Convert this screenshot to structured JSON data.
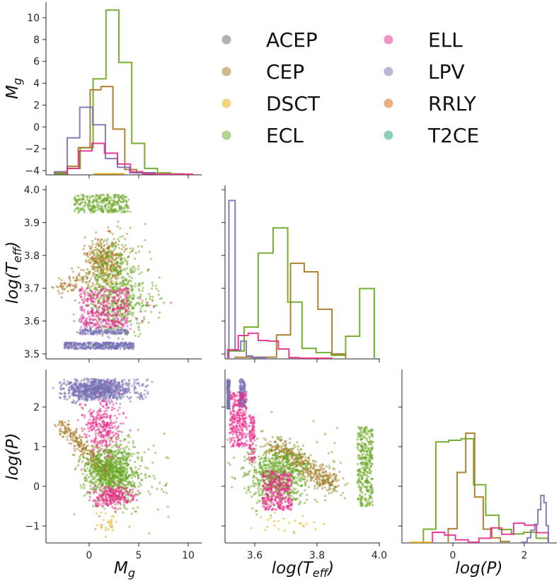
{
  "chart_data": {
    "type": "pairplot",
    "grid": false,
    "legend_placement": "upper-right",
    "variables": [
      {
        "key": "Mg",
        "label": {
          "main": "M",
          "sub": "g",
          "tail": ""
        },
        "range": [
          -4.36,
          11.36
        ],
        "ticks": [
          {
            "v": 0,
            "t": "0"
          },
          {
            "v": 5,
            "t": "5"
          },
          {
            "v": 10,
            "t": "10"
          }
        ]
      },
      {
        "key": "logT",
        "label": {
          "main": "log(T",
          "sub": "eff",
          "tail": ")"
        },
        "range": [
          3.505,
          4.0
        ],
        "ticks": [
          {
            "v": 3.5,
            "t": "3.5"
          },
          {
            "v": 3.6,
            "t": "3.6"
          },
          {
            "v": 3.7,
            "t": "3.7"
          },
          {
            "v": 3.8,
            "t": "3.8"
          },
          {
            "v": 3.9,
            "t": "3.9"
          },
          {
            "v": 4.0,
            "t": "4.0"
          }
        ]
      },
      {
        "key": "logP",
        "label": {
          "main": "log(P)",
          "sub": "",
          "tail": ""
        },
        "range": [
          -1.43,
          2.98
        ],
        "ticks": [
          {
            "v": -1,
            "t": "−1"
          },
          {
            "v": 0,
            "t": "0"
          },
          {
            "v": 1,
            "t": "1"
          },
          {
            "v": 2,
            "t": "2"
          }
        ]
      }
    ],
    "x_ticks_bottom": {
      "Mg": [
        {
          "v": 0,
          "t": "0"
        },
        {
          "v": 5,
          "t": "5"
        },
        {
          "v": 10,
          "t": "10"
        }
      ],
      "logT": [
        {
          "v": 3.6,
          "t": "3.6"
        },
        {
          "v": 3.8,
          "t": "3.8"
        },
        {
          "v": 4.0,
          "t": "4.0"
        }
      ],
      "logP": [
        {
          "v": 0,
          "t": "0"
        },
        {
          "v": 2,
          "t": "2"
        }
      ]
    },
    "top_left_y_ticks": [
      {
        "v": -4,
        "t": "−4"
      },
      {
        "v": -2,
        "t": "−2"
      },
      {
        "v": 0,
        "t": "0"
      },
      {
        "v": 2,
        "t": "2"
      },
      {
        "v": 4,
        "t": "4"
      },
      {
        "v": 6,
        "t": "6"
      },
      {
        "v": 8,
        "t": "8"
      },
      {
        "v": 10,
        "t": "10"
      }
    ],
    "top_left_y_range": [
      -4.35,
      11.5
    ],
    "classes": [
      {
        "name": "ACEP",
        "color": "#666666"
      },
      {
        "name": "CEP",
        "color": "#a6761d"
      },
      {
        "name": "DSCT",
        "color": "#e6ab02"
      },
      {
        "name": "ECL",
        "color": "#66a61e"
      },
      {
        "name": "ELL",
        "color": "#e7298a"
      },
      {
        "name": "LPV",
        "color": "#7570b3"
      },
      {
        "name": "RRLY",
        "color": "#d95f02"
      },
      {
        "name": "T2CE",
        "color": "#1b9e77"
      }
    ],
    "histograms": {
      "Mg": [
        {
          "class": "ECL",
          "edges": [
            -3.5,
            -2.2,
            -0.9,
            0.4,
            1.7,
            3.0,
            4.3,
            5.6,
            6.9,
            8.2,
            9.5
          ],
          "heights": [
            -4.3,
            -3.8,
            -1.9,
            4.4,
            10.7,
            5.9,
            -1.5,
            -3.8,
            -4.2,
            -4.3
          ]
        },
        {
          "class": "CEP",
          "edges": [
            -3.5,
            -2.2,
            -1.1,
            0.1,
            1.2,
            2.4,
            3.6,
            4.8,
            6.5
          ],
          "heights": [
            -4.2,
            -3.6,
            -1.9,
            3.4,
            3.7,
            -0.2,
            -3.9,
            -4.2
          ]
        },
        {
          "class": "LPV",
          "edges": [
            -3.5,
            -2.21,
            -0.95,
            0.36,
            1.64,
            2.86,
            4.1,
            6.71
          ],
          "heights": [
            -4.1,
            -1.0,
            1.8,
            0.2,
            -2.9,
            -3.7,
            -4.2
          ]
        },
        {
          "class": "ELL",
          "edges": [
            -2.21,
            -1.02,
            0.29,
            1.55,
            2.86,
            4.17,
            5.4,
            6.71,
            10.5
          ],
          "heights": [
            -3.8,
            -2.2,
            -1.5,
            -2.4,
            -3.4,
            -4.1,
            -4.3,
            -4.35
          ]
        },
        {
          "class": "DSCT",
          "edges": [
            0.5,
            3.5
          ],
          "heights": [
            -4.3
          ]
        }
      ],
      "logT": [
        {
          "class": "ECL",
          "edges": [
            3.517,
            3.566,
            3.611,
            3.659,
            3.706,
            3.752,
            3.797,
            3.846,
            3.892,
            3.937,
            3.984
          ],
          "heights": [
            3.509,
            3.582,
            3.807,
            3.884,
            3.658,
            3.517,
            3.504,
            3.496,
            3.554,
            3.699
          ]
        },
        {
          "class": "CEP",
          "edges": [
            3.537,
            3.67,
            3.715,
            3.759,
            3.803,
            3.848,
            3.892
          ],
          "heights": [
            3.49,
            3.558,
            3.776,
            3.75,
            3.636,
            3.5
          ]
        },
        {
          "class": "LPV",
          "edges": [
            3.517,
            3.537,
            3.555,
            3.573,
            3.592,
            3.638
          ],
          "heights": [
            3.967,
            3.511,
            3.539,
            3.494,
            3.489
          ]
        },
        {
          "class": "ELL",
          "edges": [
            3.513,
            3.547,
            3.579,
            3.611,
            3.644,
            3.676,
            3.71,
            3.742,
            3.85
          ],
          "heights": [
            3.513,
            3.556,
            3.563,
            3.541,
            3.539,
            3.515,
            3.489,
            3.487
          ]
        }
      ],
      "logP": [
        {
          "class": "ECL",
          "edges": [
            -0.825,
            -0.475,
            -0.119,
            0.23,
            0.58,
            0.92,
            1.29,
            1.64,
            1.98,
            2.33,
            2.67
          ],
          "heights": [
            -1.08,
            1.12,
            1.16,
            1.2,
            0.04,
            -0.73,
            -1.09,
            -1.2,
            -1.16,
            -1.31
          ]
        },
        {
          "class": "CEP",
          "edges": [
            -0.13,
            0.12,
            0.36,
            0.61,
            0.85,
            1.09,
            1.33,
            1.58
          ],
          "heights": [
            -1.07,
            0.35,
            1.34,
            -0.27,
            -1.08,
            -1.3,
            -1.39
          ]
        },
        {
          "class": "ELL",
          "edges": [
            -0.57,
            -0.23,
            0.07,
            0.43,
            0.73,
            1.06,
            1.37,
            1.7,
            2.01,
            2.34,
            2.67
          ],
          "heights": [
            -1.16,
            -1.23,
            -1.35,
            -1.42,
            -1.31,
            -1.05,
            -1.21,
            -0.93,
            -0.98,
            -1.17
          ]
        },
        {
          "class": "LPV",
          "edges": [
            1.91,
            2.08,
            2.18,
            2.29,
            2.38,
            2.46,
            2.55,
            2.61,
            2.67
          ],
          "heights": [
            -1.42,
            -1.3,
            -1.11,
            -0.96,
            -0.59,
            -0.23,
            -0.41,
            -0.99
          ]
        },
        {
          "class": "DSCT",
          "edges": [
            -1.2,
            -0.6
          ],
          "heights": [
            -1.42
          ]
        }
      ]
    },
    "scatter_distributions": {
      "Mg_logT": [
        {
          "class": "LPV",
          "kind": "box",
          "x": [
            -2.5,
            4.5
          ],
          "y": [
            3.515,
            3.535
          ],
          "n": 400
        },
        {
          "class": "LPV",
          "kind": "box",
          "x": [
            -1,
            4
          ],
          "y": [
            3.56,
            3.575
          ],
          "n": 150
        },
        {
          "class": "LPV",
          "kind": "gauss",
          "mean": [
            1,
            3.6
          ],
          "sd": [
            1.5,
            0.03
          ],
          "n": 60
        },
        {
          "class": "CEP",
          "kind": "gauss",
          "mean": [
            1.5,
            3.78
          ],
          "sd": [
            1.0,
            0.035
          ],
          "n": 350
        },
        {
          "class": "CEP",
          "kind": "line",
          "from": [
            -3,
            3.69
          ],
          "to": [
            0,
            3.74
          ],
          "sd": [
            0.5,
            0.012
          ],
          "n": 80
        },
        {
          "class": "ECL",
          "kind": "box",
          "x": [
            -1.5,
            4
          ],
          "y": [
            3.93,
            3.985
          ],
          "n": 300
        },
        {
          "class": "ECL",
          "kind": "gauss",
          "mean": [
            2.5,
            3.72
          ],
          "sd": [
            1.5,
            0.07
          ],
          "n": 400
        },
        {
          "class": "ECL",
          "kind": "gauss",
          "mean": [
            3.5,
            3.66
          ],
          "sd": [
            1.8,
            0.05
          ],
          "n": 250
        },
        {
          "class": "ELL",
          "kind": "box",
          "x": [
            -1,
            4
          ],
          "y": [
            3.58,
            3.7
          ],
          "n": 350
        },
        {
          "class": "ELL",
          "kind": "gauss",
          "mean": [
            3,
            3.64
          ],
          "sd": [
            2.5,
            0.05
          ],
          "n": 30
        },
        {
          "class": "DSCT",
          "kind": "gauss",
          "mean": [
            1.5,
            3.75
          ],
          "sd": [
            0.8,
            0.05
          ],
          "n": 8
        }
      ],
      "Mg_logP": [
        {
          "class": "LPV",
          "kind": "gauss",
          "mean": [
            0.8,
            2.45
          ],
          "sd": [
            1.6,
            0.15
          ],
          "n": 700
        },
        {
          "class": "LPV",
          "kind": "box",
          "x": [
            -3,
            6
          ],
          "y": [
            2.2,
            2.7
          ],
          "n": 200
        },
        {
          "class": "CEP",
          "kind": "line",
          "from": [
            -3,
            1.6
          ],
          "to": [
            2,
            0.3
          ],
          "sd": [
            0.3,
            0.12
          ],
          "n": 250
        },
        {
          "class": "ECL",
          "kind": "gauss",
          "mean": [
            2.2,
            0.4
          ],
          "sd": [
            1.4,
            0.35
          ],
          "n": 900
        },
        {
          "class": "ECL",
          "kind": "gauss",
          "mean": [
            4,
            0
          ],
          "sd": [
            2,
            0.5
          ],
          "n": 100
        },
        {
          "class": "ELL",
          "kind": "gauss",
          "mean": [
            1.3,
            1.5
          ],
          "sd": [
            0.9,
            0.35
          ],
          "n": 300
        },
        {
          "class": "ELL",
          "kind": "gauss",
          "mean": [
            2.5,
            -0.25
          ],
          "sd": [
            1.0,
            0.15
          ],
          "n": 250
        },
        {
          "class": "DSCT",
          "kind": "gauss",
          "mean": [
            1.6,
            -0.95
          ],
          "sd": [
            0.6,
            0.12
          ],
          "n": 25
        }
      ],
      "logT_logP": [
        {
          "class": "LPV",
          "kind": "box",
          "x": [
            3.505,
            3.52
          ],
          "y": [
            1.95,
            2.7
          ],
          "n": 300
        },
        {
          "class": "LPV",
          "kind": "box",
          "x": [
            3.55,
            3.57
          ],
          "y": [
            2.0,
            2.7
          ],
          "n": 150
        },
        {
          "class": "CEP",
          "kind": "line",
          "from": [
            3.65,
            1.1
          ],
          "to": [
            3.86,
            0.0
          ],
          "sd": [
            0.02,
            0.12
          ],
          "n": 400
        },
        {
          "class": "ECL",
          "kind": "gauss",
          "mean": [
            3.67,
            0.3
          ],
          "sd": [
            0.05,
            0.35
          ],
          "n": 700
        },
        {
          "class": "ECL",
          "kind": "box",
          "x": [
            3.93,
            3.98
          ],
          "y": [
            -0.5,
            1.5
          ],
          "n": 350
        },
        {
          "class": "ECL",
          "kind": "gauss",
          "mean": [
            3.75,
            0.5
          ],
          "sd": [
            0.1,
            0.6
          ],
          "n": 100
        },
        {
          "class": "ELL",
          "kind": "box",
          "x": [
            3.52,
            3.575
          ],
          "y": [
            1.0,
            2.4
          ],
          "n": 300
        },
        {
          "class": "ELL",
          "kind": "box",
          "x": [
            3.58,
            3.6
          ],
          "y": [
            0.6,
            1.8
          ],
          "n": 100
        },
        {
          "class": "ELL",
          "kind": "box",
          "x": [
            3.625,
            3.72
          ],
          "y": [
            -0.6,
            0.4
          ],
          "n": 350
        },
        {
          "class": "DSCT",
          "kind": "gauss",
          "mean": [
            3.72,
            -0.95
          ],
          "sd": [
            0.06,
            0.12
          ],
          "n": 25
        }
      ]
    }
  }
}
